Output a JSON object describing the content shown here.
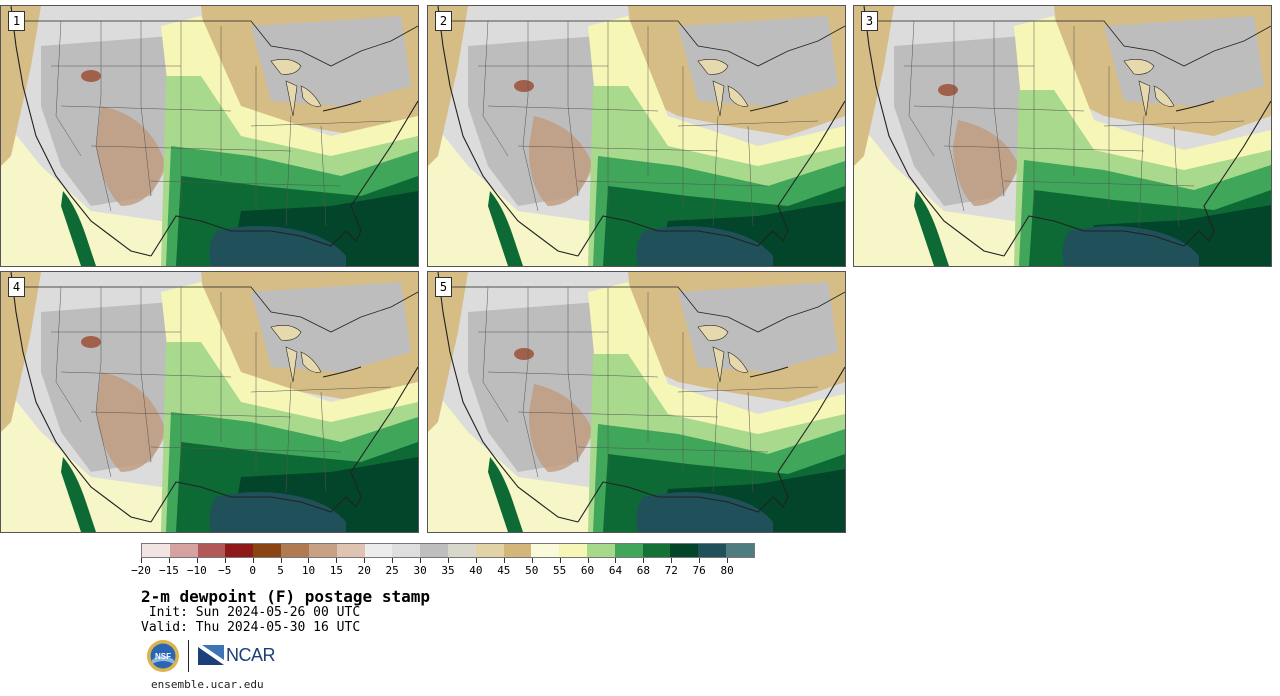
{
  "figure": {
    "title": "2-m dewpoint (F) postage stamp",
    "init": " Init: Sun 2024-05-26 00 UTC",
    "valid": "Valid: Thu 2024-05-30 16 UTC",
    "website": "ensemble.ucar.edu"
  },
  "panels": [
    {
      "label": "1"
    },
    {
      "label": "2"
    },
    {
      "label": "3"
    },
    {
      "label": "4"
    },
    {
      "label": "5"
    }
  ],
  "colorbar": {
    "colors": [
      "#f3e4e4",
      "#d5a1a1",
      "#b35858",
      "#8e1a1a",
      "#8b4513",
      "#b07a52",
      "#c8a084",
      "#dfc4b2",
      "#ececec",
      "#dedede",
      "#bebebe",
      "#d9d7c9",
      "#e2d3a6",
      "#d3b67a",
      "#fafada",
      "#f6f6b6",
      "#a6d98a",
      "#3fa65a",
      "#137236",
      "#024528",
      "#20505a",
      "#4f7c7e"
    ],
    "tick_labels": [
      "−20",
      "−15",
      "−10",
      "−5",
      "0",
      "5",
      "10",
      "15",
      "20",
      "25",
      "30",
      "35",
      "40",
      "45",
      "50",
      "55",
      "60",
      "64",
      "68",
      "72",
      "76",
      "80"
    ]
  },
  "logos": {
    "nsf_text": "NSF",
    "ncar_text": "NCAR"
  },
  "map_colors": {
    "ocean_pacific": "#f6f6c8",
    "land_dry": "#dcdcdc",
    "land_gray": "#bdbdbd",
    "tan": "#d6bd85",
    "tan_light": "#e6d9ae",
    "brown": "#c19a7c",
    "green_light": "#a8d98c",
    "green_mid": "#3fa65a",
    "green_dark": "#0e6a34",
    "green_deep": "#02452a",
    "gulf": "#20505a",
    "yellow": "#f6f6b6",
    "outline": "#222222"
  }
}
